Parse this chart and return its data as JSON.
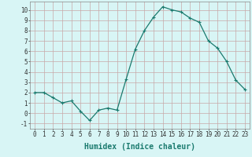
{
  "x": [
    0,
    1,
    2,
    3,
    4,
    5,
    6,
    7,
    8,
    9,
    10,
    11,
    12,
    13,
    14,
    15,
    16,
    17,
    18,
    19,
    20,
    21,
    22,
    23
  ],
  "y": [
    2,
    2,
    1.5,
    1,
    1.2,
    0.2,
    -0.7,
    0.3,
    0.5,
    0.3,
    3.3,
    6.2,
    8.0,
    9.3,
    10.3,
    10.0,
    9.8,
    9.2,
    8.8,
    7.0,
    6.3,
    5.0,
    3.2,
    2.3
  ],
  "line_color": "#1a7a6e",
  "marker": "+",
  "marker_size": 3,
  "linewidth": 0.9,
  "xlabel": "Humidex (Indice chaleur)",
  "xlabel_fontsize": 7,
  "bg_color": "#d8f5f5",
  "grid_color": "#c8a8a8",
  "xlim": [
    -0.5,
    23.5
  ],
  "ylim": [
    -1.5,
    10.8
  ],
  "yticks": [
    -1,
    0,
    1,
    2,
    3,
    4,
    5,
    6,
    7,
    8,
    9,
    10
  ],
  "xticks": [
    0,
    1,
    2,
    3,
    4,
    5,
    6,
    7,
    8,
    9,
    10,
    11,
    12,
    13,
    14,
    15,
    16,
    17,
    18,
    19,
    20,
    21,
    22,
    23
  ],
  "tick_fontsize": 5.5
}
